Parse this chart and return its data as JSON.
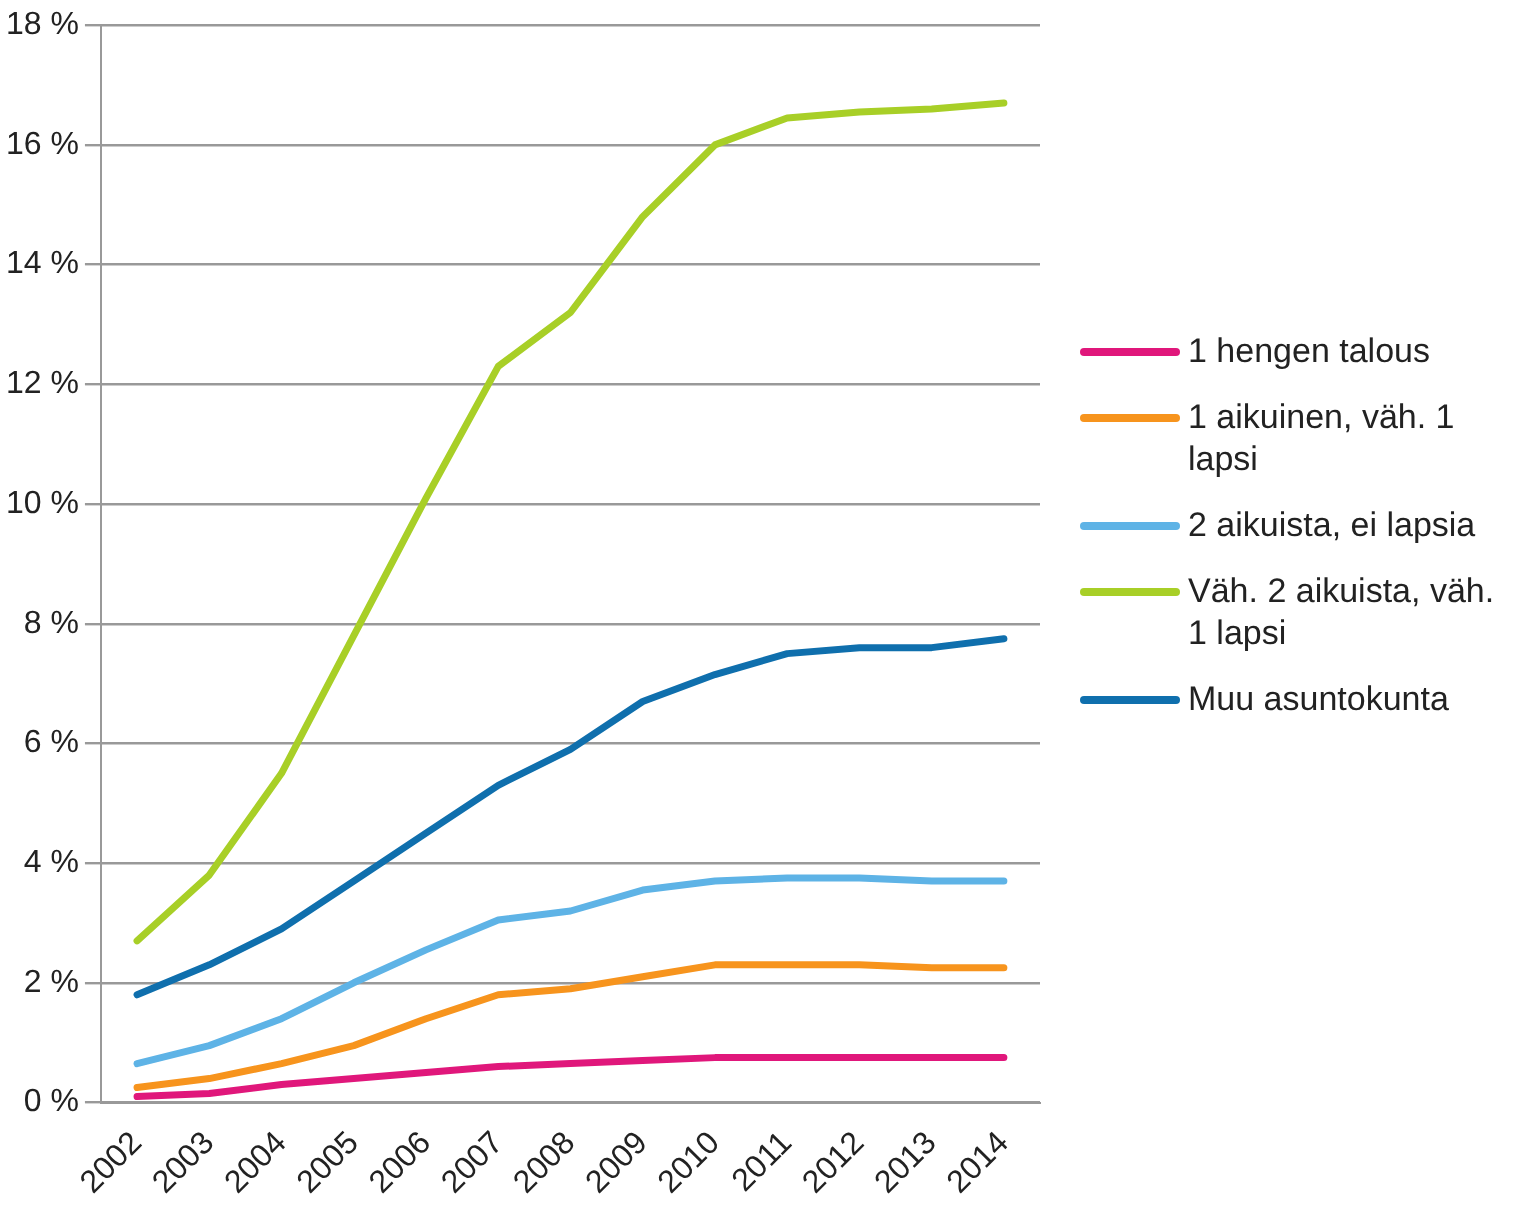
{
  "chart_data": {
    "type": "line",
    "categories": [
      "2002",
      "2003",
      "2004",
      "2005",
      "2006",
      "2007",
      "2008",
      "2009",
      "2010",
      "2011",
      "2012",
      "2013",
      "2014"
    ],
    "series": [
      {
        "name": "1 hengen talous",
        "color": "#e0177b",
        "values": [
          0.1,
          0.15,
          0.3,
          0.4,
          0.5,
          0.6,
          0.65,
          0.7,
          0.75,
          0.75,
          0.75,
          0.75,
          0.75
        ]
      },
      {
        "name": "1 aikuinen, väh. 1 lapsi",
        "color": "#f7941d",
        "values": [
          0.25,
          0.4,
          0.65,
          0.95,
          1.4,
          1.8,
          1.9,
          2.1,
          2.3,
          2.3,
          2.3,
          2.25,
          2.25
        ]
      },
      {
        "name": "2 aikuista, ei lapsia",
        "color": "#5eb3e6",
        "values": [
          0.65,
          0.95,
          1.4,
          2.0,
          2.55,
          3.05,
          3.2,
          3.55,
          3.7,
          3.75,
          3.75,
          3.7,
          3.7
        ]
      },
      {
        "name": "Väh. 2 aikuista, väh. 1 lapsi",
        "color": "#a8cf27",
        "values": [
          2.7,
          3.8,
          5.5,
          7.8,
          10.1,
          12.3,
          13.2,
          14.8,
          16.0,
          16.45,
          16.55,
          16.6,
          16.7
        ]
      },
      {
        "name": "Muu asuntokunta",
        "color": "#0f6fad",
        "values": [
          1.8,
          2.3,
          2.9,
          3.7,
          4.5,
          5.3,
          5.9,
          6.7,
          7.15,
          7.5,
          7.6,
          7.6,
          7.75
        ]
      }
    ],
    "ylim": [
      0,
      18
    ],
    "yticks": [
      {
        "value": 0,
        "label": "0 %"
      },
      {
        "value": 2,
        "label": "2 %"
      },
      {
        "value": 4,
        "label": "4 %"
      },
      {
        "value": 6,
        "label": "6 %"
      },
      {
        "value": 8,
        "label": "8 %"
      },
      {
        "value": 10,
        "label": "10 %"
      },
      {
        "value": 12,
        "label": "12 %"
      },
      {
        "value": 14,
        "label": "14 %"
      },
      {
        "value": 16,
        "label": "16 %"
      },
      {
        "value": 18,
        "label": "18 %"
      }
    ],
    "grid": "y",
    "legend": "right",
    "marker": "none",
    "line_style": "solid"
  }
}
